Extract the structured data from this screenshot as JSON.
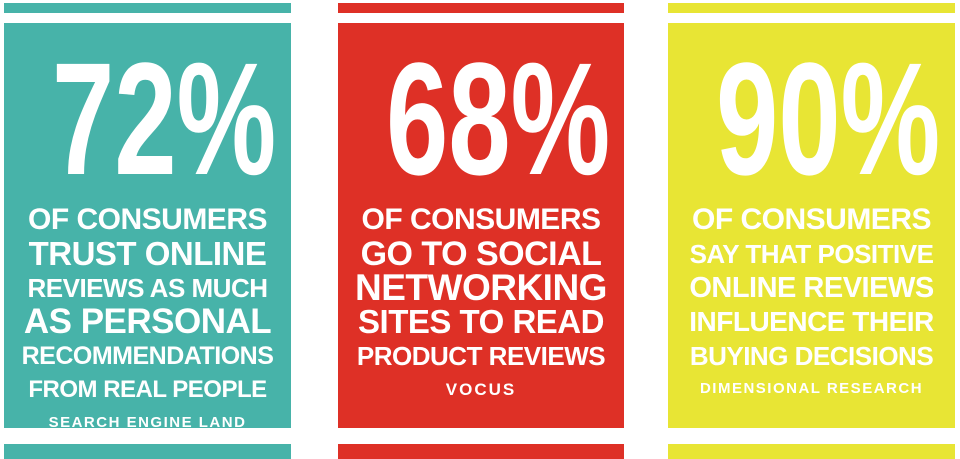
{
  "chart_data": {
    "type": "table",
    "units": "percent of consumers",
    "categories": [
      "Search Engine Land",
      "Vocus",
      "Dimensional Research"
    ],
    "values": [
      72,
      68,
      90
    ],
    "rows": [
      {
        "value": 72,
        "statement": "of consumers trust online reviews as much as personal recommendations from real people",
        "source": "Search Engine Land",
        "color": "#47b3a9"
      },
      {
        "value": 68,
        "statement": "of consumers go to social networking sites to read product reviews",
        "source": "Vocus",
        "color": "#de3026"
      },
      {
        "value": 90,
        "statement": "of consumers say that positive online reviews influence their buying decisions",
        "source": "Dimensional Research",
        "color": "#e8e534"
      }
    ]
  },
  "canvas": {
    "background": "#ffffff",
    "text_color": "#ffffff"
  },
  "panels": [
    {
      "name": "teal-stat-card",
      "color": "#47b3a9",
      "stat_value": "72%",
      "lines": [
        "OF CONSUMERS",
        "TRUST ONLINE",
        "REVIEWS AS MUCH",
        "AS PERSONAL",
        "RECOMMENDATIONS",
        "FROM REAL PEOPLE"
      ],
      "source": "SEARCH ENGINE LAND"
    },
    {
      "name": "red-stat-card",
      "color": "#de3026",
      "stat_value": "68%",
      "lines": [
        "OF CONSUMERS",
        "GO TO SOCIAL",
        "NETWORKING",
        "SITES TO READ",
        "PRODUCT REVIEWS"
      ],
      "source": "VOCUS"
    },
    {
      "name": "yellow-stat-card",
      "color": "#e8e534",
      "stat_value": "90%",
      "lines": [
        "OF CONSUMERS",
        "SAY THAT POSITIVE",
        "ONLINE REVIEWS",
        "INFLUENCE THEIR",
        "BUYING DECISIONS"
      ],
      "source": "DIMENSIONAL RESEARCH"
    }
  ]
}
